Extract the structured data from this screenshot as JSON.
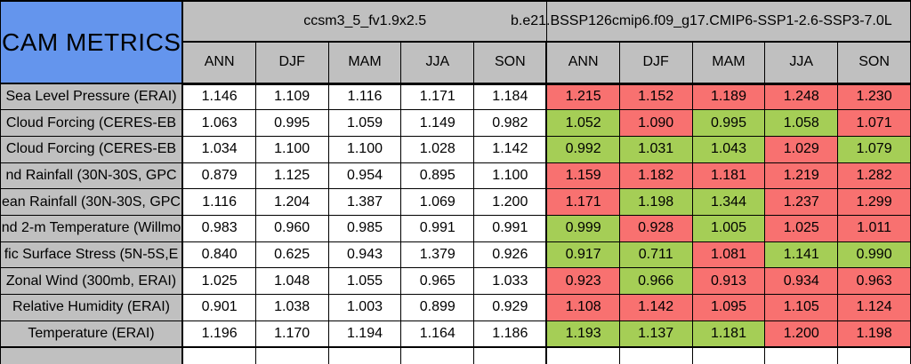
{
  "title": "CAM METRICS",
  "colors": {
    "header_blue": "#6495ED",
    "header_gray": "#C0C0C0",
    "good_green": "#A5CE56",
    "bad_red": "#F87170",
    "cell_white": "#FFFFFF",
    "border": "#000000"
  },
  "chart_data": {
    "type": "table",
    "title": "CAM METRICS",
    "column_groups": [
      {
        "name": "ccsm3_5_fv1.9x2.5",
        "seasons": [
          "ANN",
          "DJF",
          "MAM",
          "JJA",
          "SON"
        ]
      },
      {
        "name": "b.e21.BSSP126cmip6.f09_g17.CMIP6-SSP1-2.6-SSP3-7.0L",
        "seasons": [
          "ANN",
          "DJF",
          "MAM",
          "JJA",
          "SON"
        ]
      }
    ],
    "rows": [
      {
        "label": "Sea Level Pressure (ERAI)",
        "model1": [
          "1.146",
          "1.109",
          "1.116",
          "1.171",
          "1.184"
        ],
        "model2": [
          "1.215",
          "1.152",
          "1.189",
          "1.248",
          "1.230"
        ],
        "model2_colors": [
          "red",
          "red",
          "red",
          "red",
          "red"
        ]
      },
      {
        "label": "Cloud Forcing (CERES-EB",
        "model1": [
          "1.063",
          "0.995",
          "1.059",
          "1.149",
          "0.982"
        ],
        "model2": [
          "1.052",
          "1.090",
          "0.995",
          "1.058",
          "1.071"
        ],
        "model2_colors": [
          "green",
          "red",
          "green",
          "green",
          "red"
        ]
      },
      {
        "label": "Cloud Forcing (CERES-EB",
        "model1": [
          "1.034",
          "1.100",
          "1.100",
          "1.028",
          "1.142"
        ],
        "model2": [
          "0.992",
          "1.031",
          "1.043",
          "1.029",
          "1.079"
        ],
        "model2_colors": [
          "green",
          "green",
          "green",
          "red",
          "green"
        ]
      },
      {
        "label": "nd Rainfall (30N-30S, GPC",
        "model1": [
          "0.879",
          "1.125",
          "0.954",
          "0.895",
          "1.100"
        ],
        "model2": [
          "1.159",
          "1.182",
          "1.181",
          "1.219",
          "1.282"
        ],
        "model2_colors": [
          "red",
          "red",
          "red",
          "red",
          "red"
        ]
      },
      {
        "label": "ean Rainfall (30N-30S, GPC",
        "model1": [
          "1.116",
          "1.204",
          "1.387",
          "1.069",
          "1.200"
        ],
        "model2": [
          "1.171",
          "1.198",
          "1.344",
          "1.237",
          "1.299"
        ],
        "model2_colors": [
          "red",
          "green",
          "green",
          "red",
          "red"
        ]
      },
      {
        "label": "nd 2-m Temperature (Willmo",
        "model1": [
          "0.983",
          "0.960",
          "0.985",
          "0.991",
          "0.991"
        ],
        "model2": [
          "0.999",
          "0.928",
          "1.005",
          "1.025",
          "1.011"
        ],
        "model2_colors": [
          "green",
          "red",
          "green",
          "red",
          "red"
        ]
      },
      {
        "label": "fic Surface Stress (5N-5S,E",
        "model1": [
          "0.840",
          "0.625",
          "0.943",
          "1.379",
          "0.926"
        ],
        "model2": [
          "0.917",
          "0.711",
          "1.081",
          "1.141",
          "0.990"
        ],
        "model2_colors": [
          "green",
          "green",
          "red",
          "green",
          "green"
        ]
      },
      {
        "label": "Zonal Wind (300mb, ERAI)",
        "model1": [
          "1.025",
          "1.048",
          "1.055",
          "0.965",
          "1.033"
        ],
        "model2": [
          "0.923",
          "0.966",
          "0.913",
          "0.934",
          "0.963"
        ],
        "model2_colors": [
          "red",
          "green",
          "red",
          "red",
          "red"
        ]
      },
      {
        "label": "Relative Humidity (ERAI)",
        "model1": [
          "0.901",
          "1.038",
          "1.003",
          "0.899",
          "0.929"
        ],
        "model2": [
          "1.108",
          "1.142",
          "1.095",
          "1.105",
          "1.124"
        ],
        "model2_colors": [
          "red",
          "red",
          "red",
          "red",
          "red"
        ]
      },
      {
        "label": "Temperature (ERAI)",
        "model1": [
          "1.196",
          "1.170",
          "1.194",
          "1.164",
          "1.186"
        ],
        "model2": [
          "1.193",
          "1.137",
          "1.181",
          "1.200",
          "1.198"
        ],
        "model2_colors": [
          "green",
          "green",
          "green",
          "red",
          "red"
        ]
      }
    ]
  }
}
